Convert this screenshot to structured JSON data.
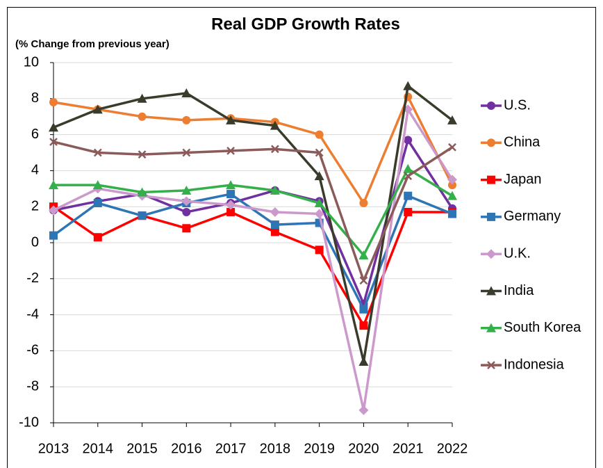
{
  "chart_data": {
    "type": "line",
    "title": "Real GDP Growth Rates",
    "subtitle": "(% Change from previous year)",
    "x": [
      2013,
      2014,
      2015,
      2016,
      2017,
      2018,
      2019,
      2020,
      2021,
      2022
    ],
    "xlim": [
      2013,
      2022
    ],
    "xticks": [
      2013,
      2014,
      2015,
      2016,
      2017,
      2018,
      2019,
      2020,
      2021,
      2022
    ],
    "ylim": [
      -10,
      10
    ],
    "yticks": [
      -10,
      -8,
      -6,
      -4,
      -2,
      0,
      2,
      4,
      6,
      8,
      10
    ],
    "grid": true,
    "legend": "right",
    "series": [
      {
        "name": "U.S.",
        "color": "#7030a0",
        "marker": "circle",
        "values": [
          1.8,
          2.3,
          2.7,
          1.7,
          2.2,
          2.9,
          2.3,
          -3.4,
          5.7,
          1.9
        ]
      },
      {
        "name": "China",
        "color": "#ed7d31",
        "marker": "circle",
        "values": [
          7.8,
          7.4,
          7.0,
          6.8,
          6.9,
          6.7,
          6.0,
          2.2,
          8.1,
          3.2
        ]
      },
      {
        "name": "Japan",
        "color": "#ff0000",
        "marker": "square",
        "values": [
          2.0,
          0.3,
          1.5,
          0.8,
          1.7,
          0.6,
          -0.4,
          -4.6,
          1.7,
          1.7
        ]
      },
      {
        "name": "Germany",
        "color": "#2e75b6",
        "marker": "square",
        "values": [
          0.4,
          2.2,
          1.5,
          2.2,
          2.7,
          1.0,
          1.1,
          -3.7,
          2.6,
          1.6
        ]
      },
      {
        "name": "U.K.",
        "color": "#cc99cc",
        "marker": "diamond",
        "values": [
          1.8,
          3.0,
          2.6,
          2.3,
          2.1,
          1.7,
          1.6,
          -9.3,
          7.4,
          3.5
        ]
      },
      {
        "name": "India",
        "color": "#3b3b2b",
        "marker": "triangle",
        "values": [
          6.4,
          7.4,
          8.0,
          8.3,
          6.8,
          6.5,
          3.7,
          -6.6,
          8.7,
          6.8
        ]
      },
      {
        "name": "South Korea",
        "color": "#33b04a",
        "marker": "triangle",
        "values": [
          3.2,
          3.2,
          2.8,
          2.9,
          3.2,
          2.9,
          2.2,
          -0.7,
          4.1,
          2.6
        ]
      },
      {
        "name": "Indonesia",
        "color": "#8b5a5a",
        "marker": "cross",
        "values": [
          5.6,
          5.0,
          4.9,
          5.0,
          5.1,
          5.2,
          5.0,
          -2.1,
          3.7,
          5.3
        ]
      }
    ]
  }
}
